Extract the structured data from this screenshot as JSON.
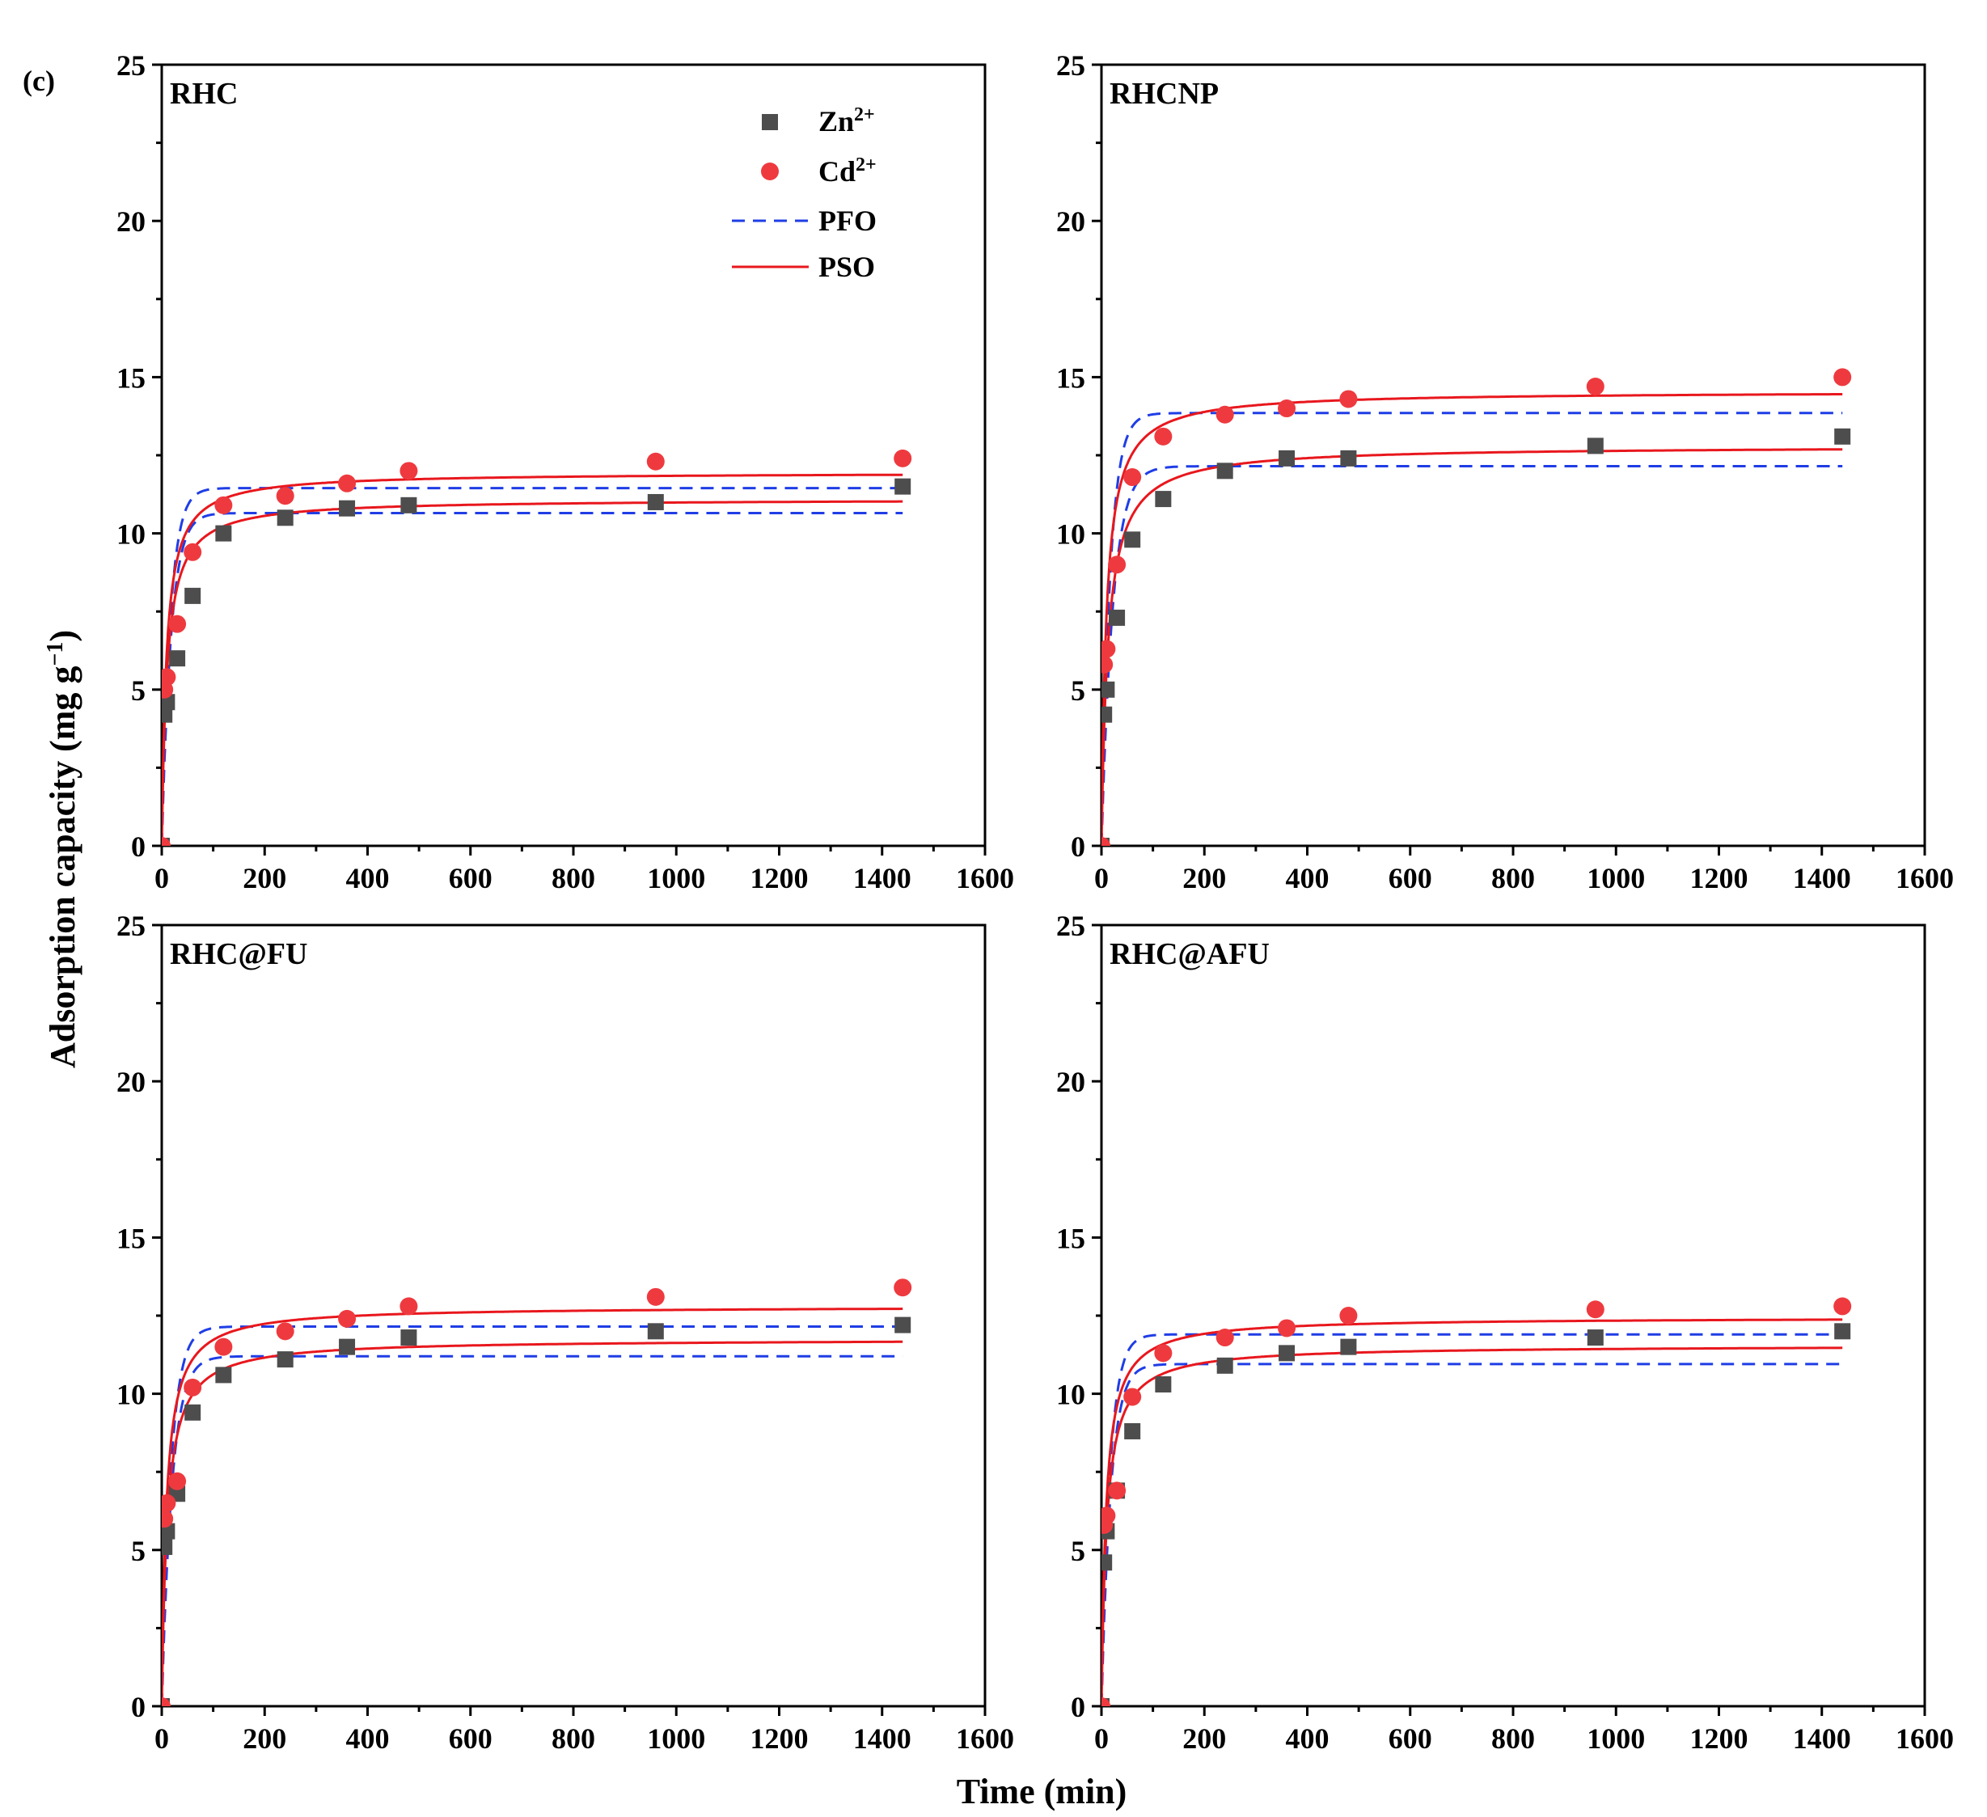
{
  "figure_label": "(c)",
  "ylabel_main": "Adsorption capacity (mg g",
  "ylabel_sup": "−1",
  "ylabel_close": ")",
  "xlabel": "Time (min)",
  "legend": {
    "zn": {
      "base": "Zn",
      "sup": "2+"
    },
    "cd": {
      "base": "Cd",
      "sup": "2+"
    },
    "pfo": "PFO",
    "pso": "PSO"
  },
  "colors": {
    "zn": "#4d4d4d",
    "cd": "#ee3a3f",
    "pfo": "#1f3de6",
    "pso": "#e8171d"
  },
  "chart_data": [
    {
      "type": "scatter",
      "title": "RHC",
      "xlim": [
        0,
        1600
      ],
      "ylim": [
        0,
        25
      ],
      "xticks": [
        0,
        200,
        400,
        600,
        800,
        1000,
        1200,
        1400,
        1600
      ],
      "yticks": [
        0,
        5,
        10,
        15,
        20,
        25
      ],
      "x": [
        0,
        5,
        10,
        30,
        60,
        120,
        240,
        360,
        480,
        960,
        1440
      ],
      "series": [
        {
          "name": "Zn2+",
          "values": [
            0,
            4.2,
            4.6,
            6.0,
            8.0,
            10.0,
            10.5,
            10.8,
            10.9,
            11.0,
            11.5
          ]
        },
        {
          "name": "Cd2+",
          "values": [
            0,
            5.0,
            5.4,
            7.1,
            9.4,
            10.9,
            11.2,
            11.6,
            12.0,
            12.3,
            12.4
          ]
        }
      ],
      "fits": {
        "PFO": [
          {
            "ion": "Zn2+",
            "qe": 10.65,
            "k": 0.055
          },
          {
            "ion": "Cd2+",
            "qe": 11.45,
            "k": 0.06
          }
        ],
        "PSO": [
          {
            "ion": "Zn2+",
            "qe": 11.1,
            "k": 0.0088
          },
          {
            "ion": "Cd2+",
            "qe": 11.95,
            "k": 0.0092
          }
        ]
      }
    },
    {
      "type": "scatter",
      "title": "RHCNP",
      "xlim": [
        0,
        1600
      ],
      "ylim": [
        0,
        25
      ],
      "xticks": [
        0,
        200,
        400,
        600,
        800,
        1000,
        1200,
        1400,
        1600
      ],
      "yticks": [
        0,
        5,
        10,
        15,
        20,
        25
      ],
      "x": [
        0,
        5,
        10,
        30,
        60,
        120,
        240,
        360,
        480,
        960,
        1440
      ],
      "series": [
        {
          "name": "Zn2+",
          "values": [
            0,
            4.2,
            5.0,
            7.3,
            9.8,
            11.1,
            12.0,
            12.4,
            12.4,
            12.8,
            13.1
          ]
        },
        {
          "name": "Cd2+",
          "values": [
            0,
            5.8,
            6.3,
            9.0,
            11.8,
            13.1,
            13.8,
            14.0,
            14.3,
            14.7,
            15.0
          ]
        }
      ],
      "fits": {
        "PFO": [
          {
            "ion": "Zn2+",
            "qe": 12.15,
            "k": 0.045
          },
          {
            "ion": "Cd2+",
            "qe": 13.85,
            "k": 0.058
          }
        ],
        "PSO": [
          {
            "ion": "Zn2+",
            "qe": 12.8,
            "k": 0.0062
          },
          {
            "ion": "Cd2+",
            "qe": 14.55,
            "k": 0.0072
          }
        ]
      }
    },
    {
      "type": "scatter",
      "title": "RHC@FU",
      "xlim": [
        0,
        1600
      ],
      "ylim": [
        0,
        25
      ],
      "xticks": [
        0,
        200,
        400,
        600,
        800,
        1000,
        1200,
        1400,
        1600
      ],
      "yticks": [
        0,
        5,
        10,
        15,
        20,
        25
      ],
      "x": [
        0,
        5,
        10,
        30,
        60,
        120,
        240,
        360,
        480,
        960,
        1440
      ],
      "series": [
        {
          "name": "Zn2+",
          "values": [
            0,
            5.1,
            5.6,
            6.8,
            9.4,
            10.6,
            11.1,
            11.5,
            11.8,
            12.0,
            12.2
          ]
        },
        {
          "name": "Cd2+",
          "values": [
            0,
            6.0,
            6.5,
            7.2,
            10.2,
            11.5,
            12.0,
            12.4,
            12.8,
            13.1,
            13.4
          ]
        }
      ],
      "fits": {
        "PFO": [
          {
            "ion": "Zn2+",
            "qe": 11.2,
            "k": 0.05
          },
          {
            "ion": "Cd2+",
            "qe": 12.15,
            "k": 0.055
          }
        ],
        "PSO": [
          {
            "ion": "Zn2+",
            "qe": 11.75,
            "k": 0.008
          },
          {
            "ion": "Cd2+",
            "qe": 12.8,
            "k": 0.0085
          }
        ]
      }
    },
    {
      "type": "scatter",
      "title": "RHC@AFU",
      "xlim": [
        0,
        1600
      ],
      "ylim": [
        0,
        25
      ],
      "xticks": [
        0,
        200,
        400,
        600,
        800,
        1000,
        1200,
        1400,
        1600
      ],
      "yticks": [
        0,
        5,
        10,
        15,
        20,
        25
      ],
      "x": [
        0,
        5,
        10,
        30,
        60,
        120,
        240,
        360,
        480,
        960,
        1440
      ],
      "series": [
        {
          "name": "Zn2+",
          "values": [
            0,
            4.6,
            5.6,
            6.9,
            8.8,
            10.3,
            10.9,
            11.3,
            11.5,
            11.8,
            12.0
          ]
        },
        {
          "name": "Cd2+",
          "values": [
            0,
            5.8,
            6.1,
            6.9,
            9.9,
            11.3,
            11.8,
            12.1,
            12.5,
            12.7,
            12.8
          ]
        }
      ],
      "fits": {
        "PFO": [
          {
            "ion": "Zn2+",
            "qe": 10.95,
            "k": 0.055
          },
          {
            "ion": "Cd2+",
            "qe": 11.9,
            "k": 0.06
          }
        ],
        "PSO": [
          {
            "ion": "Zn2+",
            "qe": 11.55,
            "k": 0.0085
          },
          {
            "ion": "Cd2+",
            "qe": 12.45,
            "k": 0.009
          }
        ]
      }
    }
  ]
}
